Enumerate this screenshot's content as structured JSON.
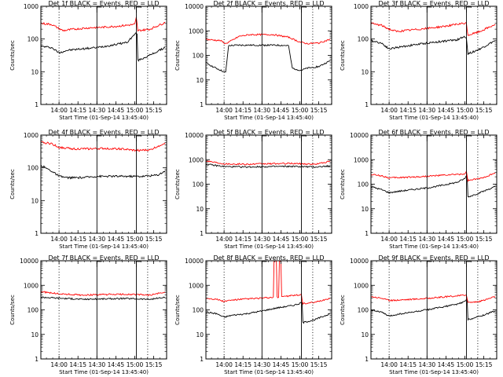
{
  "colors": {
    "events": "#000000",
    "lld": "#ff0000",
    "background": "#ffffff",
    "axes": "#000000"
  },
  "chart_data": [
    {
      "type": "line",
      "title": "Det 1f BLACK = Events, RED = LLD",
      "xlabel": "Start Time (01-Sep-14 13:45:40)",
      "ylabel": "Counts/sec",
      "yscale": "log",
      "ylim": [
        1,
        1000
      ],
      "xlim": [
        13.76,
        15.42
      ],
      "xticks": [
        "14:00",
        "14:15",
        "14:30",
        "14:45",
        "15:00",
        "15:15"
      ],
      "yticks": [
        "1",
        "10",
        "100",
        "1000"
      ],
      "dotted_lines": [
        14.0,
        15.17
      ],
      "solid_lines": [
        14.5,
        15.02
      ],
      "series": [
        {
          "name": "Events",
          "color": "#000000",
          "x": [
            13.76,
            13.9,
            14.0,
            14.1,
            14.3,
            14.5,
            14.7,
            14.9,
            15.0,
            15.02,
            15.04,
            15.2,
            15.4
          ],
          "values": [
            60,
            55,
            38,
            45,
            50,
            55,
            65,
            80,
            140,
            150,
            22,
            32,
            55
          ]
        },
        {
          "name": "LLD",
          "color": "#ff0000",
          "x": [
            13.76,
            13.9,
            14.05,
            14.2,
            14.4,
            14.6,
            14.8,
            15.0,
            15.02,
            15.04,
            15.2,
            15.4
          ],
          "values": [
            300,
            280,
            180,
            200,
            220,
            230,
            250,
            280,
            450,
            180,
            200,
            320
          ]
        }
      ]
    },
    {
      "type": "line",
      "title": "Det 2f BLACK = Events, RED = LLD",
      "xlabel": "Start Time (01-Sep-14 13:45:40)",
      "ylabel": "Counts/sec",
      "yscale": "log",
      "ylim": [
        1,
        10000
      ],
      "xlim": [
        13.76,
        15.42
      ],
      "xticks": [
        "14:00",
        "14:15",
        "14:30",
        "14:45",
        "15:00",
        "15:15"
      ],
      "yticks": [
        "1",
        "10",
        "100",
        "1000",
        "10000"
      ],
      "dotted_lines": [
        14.0,
        15.17
      ],
      "solid_lines": [
        14.5,
        15.02
      ],
      "series": [
        {
          "name": "Events",
          "color": "#000000",
          "x": [
            13.76,
            13.85,
            13.95,
            14.02,
            14.06,
            14.2,
            14.5,
            14.7,
            14.85,
            14.9,
            15.0,
            15.02,
            15.1,
            15.25,
            15.4
          ],
          "values": [
            50,
            35,
            25,
            20,
            250,
            260,
            260,
            260,
            250,
            30,
            25,
            25,
            30,
            35,
            60
          ]
        },
        {
          "name": "LLD",
          "color": "#ff0000",
          "x": [
            13.76,
            13.95,
            14.02,
            14.1,
            14.2,
            14.35,
            14.5,
            14.65,
            14.85,
            15.0,
            15.1,
            15.25,
            15.4
          ],
          "values": [
            450,
            400,
            300,
            400,
            600,
            700,
            700,
            700,
            550,
            350,
            300,
            320,
            450
          ]
        }
      ]
    },
    {
      "type": "line",
      "title": "Det 3f BLACK = Events, RED = LLD",
      "xlabel": "Start Time (01-Sep-14 13:45:40)",
      "ylabel": "Counts/sec",
      "yscale": "log",
      "ylim": [
        1,
        1000
      ],
      "xlim": [
        13.76,
        15.42
      ],
      "xticks": [
        "14:00",
        "14:15",
        "14:30",
        "14:45",
        "15:00",
        "15:15"
      ],
      "yticks": [
        "1",
        "10",
        "100",
        "1000"
      ],
      "dotted_lines": [
        14.0,
        15.17
      ],
      "solid_lines": [
        14.5,
        15.02
      ],
      "series": [
        {
          "name": "Events",
          "color": "#000000",
          "x": [
            13.76,
            13.9,
            14.0,
            14.1,
            14.3,
            14.5,
            14.7,
            14.9,
            15.0,
            15.02,
            15.04,
            15.2,
            15.4
          ],
          "values": [
            90,
            75,
            50,
            55,
            65,
            75,
            85,
            95,
            120,
            110,
            35,
            50,
            90
          ]
        },
        {
          "name": "LLD",
          "color": "#ff0000",
          "x": [
            13.76,
            13.9,
            14.0,
            14.1,
            14.3,
            14.5,
            14.7,
            14.9,
            15.0,
            15.02,
            15.04,
            15.2,
            15.4
          ],
          "values": [
            300,
            260,
            200,
            170,
            190,
            210,
            240,
            280,
            300,
            300,
            130,
            170,
            280
          ]
        }
      ]
    },
    {
      "type": "line",
      "title": "Det 4f BLACK = Events, RED = LLD",
      "xlabel": "Start Time (01-Sep-14 13:45:40)",
      "ylabel": "Counts/sec",
      "yscale": "log",
      "ylim": [
        1,
        1000
      ],
      "xlim": [
        13.76,
        15.42
      ],
      "xticks": [
        "14:00",
        "14:15",
        "14:30",
        "14:45",
        "15:00",
        "15:15"
      ],
      "yticks": [
        "1",
        "10",
        "100",
        "1000"
      ],
      "dotted_lines": [
        14.0,
        15.17
      ],
      "solid_lines": [
        14.5,
        15.02
      ],
      "series": [
        {
          "name": "Events",
          "color": "#000000",
          "x": [
            13.76,
            13.9,
            14.0,
            14.1,
            14.3,
            14.5,
            14.7,
            14.9,
            15.1,
            15.3,
            15.4
          ],
          "values": [
            120,
            80,
            55,
            50,
            50,
            55,
            55,
            55,
            55,
            60,
            80
          ]
        },
        {
          "name": "LLD",
          "color": "#ff0000",
          "x": [
            13.76,
            13.9,
            14.0,
            14.2,
            14.4,
            14.6,
            14.8,
            15.0,
            15.2,
            15.4
          ],
          "values": [
            600,
            550,
            420,
            380,
            380,
            390,
            380,
            340,
            350,
            580
          ]
        }
      ]
    },
    {
      "type": "line",
      "title": "Det 5f BLACK = Events, RED = LLD",
      "xlabel": "Start Time (01-Sep-14 13:45:40)",
      "ylabel": "Counts/sec",
      "yscale": "log",
      "ylim": [
        1,
        10000
      ],
      "xlim": [
        13.76,
        15.42
      ],
      "xticks": [
        "14:00",
        "14:15",
        "14:30",
        "14:45",
        "15:00",
        "15:15"
      ],
      "yticks": [
        "1",
        "10",
        "100",
        "1000",
        "10000"
      ],
      "dotted_lines": [
        14.0,
        15.17
      ],
      "solid_lines": [
        14.5,
        15.02
      ],
      "series": [
        {
          "name": "Events",
          "color": "#000000",
          "x": [
            13.76,
            14.0,
            14.3,
            14.6,
            14.9,
            15.2,
            15.4
          ],
          "values": [
            650,
            520,
            500,
            520,
            530,
            500,
            550
          ]
        },
        {
          "name": "LLD",
          "color": "#ff0000",
          "x": [
            13.76,
            14.0,
            14.3,
            14.6,
            14.9,
            15.2,
            15.4
          ],
          "values": [
            900,
            680,
            650,
            680,
            700,
            650,
            850
          ]
        }
      ]
    },
    {
      "type": "line",
      "title": "Det 6f BLACK = Events, RED = LLD",
      "xlabel": "Start Time (01-Sep-14 13:45:40)",
      "ylabel": "Counts/sec",
      "yscale": "log",
      "ylim": [
        1,
        10000
      ],
      "xlim": [
        13.76,
        15.42
      ],
      "xticks": [
        "14:00",
        "14:15",
        "14:30",
        "14:45",
        "15:00",
        "15:15"
      ],
      "yticks": [
        "1",
        "10",
        "100",
        "1000",
        "10000"
      ],
      "dotted_lines": [
        14.0,
        15.17
      ],
      "solid_lines": [
        14.5,
        15.02
      ],
      "series": [
        {
          "name": "Events",
          "color": "#000000",
          "x": [
            13.76,
            13.9,
            14.0,
            14.1,
            14.3,
            14.5,
            14.7,
            14.9,
            15.0,
            15.02,
            15.04,
            15.2,
            15.4
          ],
          "values": [
            80,
            60,
            45,
            50,
            60,
            70,
            90,
            120,
            170,
            220,
            30,
            45,
            80
          ]
        },
        {
          "name": "LLD",
          "color": "#ff0000",
          "x": [
            13.76,
            13.9,
            14.0,
            14.2,
            14.4,
            14.6,
            14.8,
            15.0,
            15.02,
            15.04,
            15.2,
            15.4
          ],
          "values": [
            250,
            220,
            180,
            190,
            200,
            220,
            240,
            260,
            320,
            140,
            170,
            280
          ]
        }
      ]
    },
    {
      "type": "line",
      "title": "Det 7f BLACK = Events, RED = LLD",
      "xlabel": "Start Time (01-Sep-14 13:45:40)",
      "ylabel": "Counts/sec",
      "yscale": "log",
      "ylim": [
        1,
        10000
      ],
      "xlim": [
        13.76,
        15.42
      ],
      "xticks": [
        "14:00",
        "14:15",
        "14:30",
        "14:45",
        "15:00",
        "15:15"
      ],
      "yticks": [
        "1",
        "10",
        "100",
        "1000",
        "10000"
      ],
      "dotted_lines": [
        14.0,
        15.17
      ],
      "solid_lines": [
        14.5,
        15.02
      ],
      "series": [
        {
          "name": "Events",
          "color": "#000000",
          "x": [
            13.76,
            14.0,
            14.3,
            14.6,
            14.9,
            15.2,
            15.4
          ],
          "values": [
            330,
            300,
            270,
            280,
            290,
            270,
            320
          ]
        },
        {
          "name": "LLD",
          "color": "#ff0000",
          "x": [
            13.76,
            14.0,
            14.3,
            14.6,
            14.9,
            15.2,
            15.4
          ],
          "values": [
            550,
            450,
            400,
            420,
            430,
            400,
            520
          ]
        }
      ]
    },
    {
      "type": "line",
      "title": "Det 8f BLACK = Events, RED = LLD",
      "xlabel": "Start Time (01-Sep-14 13:45:40)",
      "ylabel": "Counts/sec",
      "yscale": "log",
      "ylim": [
        1,
        10000
      ],
      "xlim": [
        13.76,
        15.42
      ],
      "xticks": [
        "14:00",
        "14:15",
        "14:30",
        "14:45",
        "15:00",
        "15:15"
      ],
      "yticks": [
        "1",
        "10",
        "100",
        "1000",
        "10000"
      ],
      "dotted_lines": [
        14.0,
        15.17
      ],
      "solid_lines": [
        14.5,
        15.02
      ],
      "series": [
        {
          "name": "Events",
          "color": "#000000",
          "x": [
            13.76,
            13.9,
            14.0,
            14.1,
            14.3,
            14.5,
            14.7,
            14.9,
            15.0,
            15.02,
            15.04,
            15.2,
            15.4
          ],
          "values": [
            80,
            70,
            50,
            60,
            70,
            90,
            120,
            150,
            180,
            200,
            30,
            40,
            70
          ]
        },
        {
          "name": "LLD",
          "color": "#ff0000",
          "x": [
            13.76,
            13.9,
            14.0,
            14.1,
            14.3,
            14.5,
            14.65,
            14.66,
            14.7,
            14.72,
            14.73,
            14.75,
            14.76,
            14.8,
            15.0,
            15.02,
            15.04,
            15.2,
            15.4
          ],
          "values": [
            300,
            270,
            220,
            250,
            280,
            300,
            320,
            10000,
            320,
            330,
            10000,
            10000,
            350,
            360,
            400,
            420,
            180,
            200,
            300
          ]
        }
      ]
    },
    {
      "type": "line",
      "title": "Det 9f BLACK = Events, RED = LLD",
      "xlabel": "Start Time (01-Sep-14 13:45:40)",
      "ylabel": "Counts/sec",
      "yscale": "log",
      "ylim": [
        1,
        10000
      ],
      "xlim": [
        13.76,
        15.42
      ],
      "xticks": [
        "14:00",
        "14:15",
        "14:30",
        "14:45",
        "15:00",
        "15:15"
      ],
      "yticks": [
        "1",
        "10",
        "100",
        "1000",
        "10000"
      ],
      "dotted_lines": [
        14.0,
        15.17
      ],
      "solid_lines": [
        14.5,
        15.02
      ],
      "series": [
        {
          "name": "Events",
          "color": "#000000",
          "x": [
            13.76,
            13.9,
            14.0,
            14.1,
            14.3,
            14.5,
            14.7,
            14.9,
            15.0,
            15.02,
            15.04,
            15.2,
            15.4
          ],
          "values": [
            100,
            80,
            55,
            65,
            80,
            100,
            130,
            170,
            220,
            260,
            40,
            55,
            90
          ]
        },
        {
          "name": "LLD",
          "color": "#ff0000",
          "x": [
            13.76,
            13.9,
            14.0,
            14.2,
            14.4,
            14.6,
            14.8,
            15.0,
            15.02,
            15.04,
            15.2,
            15.4
          ],
          "values": [
            350,
            300,
            240,
            260,
            280,
            310,
            350,
            400,
            430,
            200,
            220,
            350
          ]
        }
      ]
    }
  ]
}
